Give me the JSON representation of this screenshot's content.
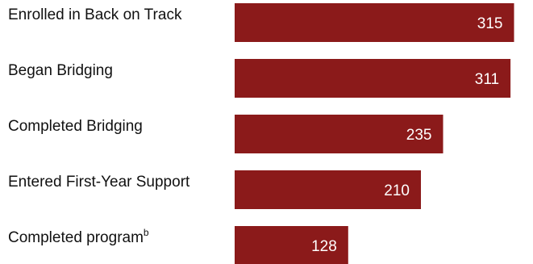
{
  "chart_data": {
    "type": "bar",
    "orientation": "horizontal",
    "categories": [
      "Enrolled in Back on Track",
      "Began Bridging",
      "Completed Bridging",
      "Entered First-Year Support",
      "Completed program"
    ],
    "category_superscripts": [
      "",
      "",
      "",
      "",
      "b"
    ],
    "values": [
      315,
      311,
      235,
      210,
      128
    ],
    "title": "",
    "xlabel": "",
    "ylabel": "",
    "xlim": [
      0,
      320
    ],
    "grid": false,
    "bar_color": "#8b1a1a",
    "value_label_color": "#ffffff"
  }
}
